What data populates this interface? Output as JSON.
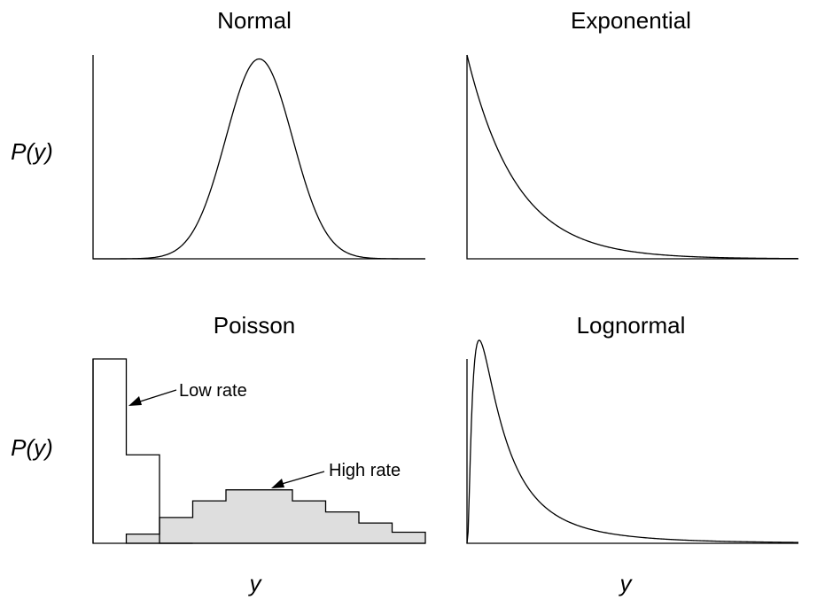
{
  "chart_data": [
    {
      "type": "line",
      "title": "Normal",
      "ylabel": "P(y)",
      "xlabel": "",
      "curve": "normal",
      "params": {
        "mean": 0.5,
        "sd": 0.1
      },
      "xlim": [
        0,
        1
      ],
      "ylim": [
        0,
        1.02
      ]
    },
    {
      "type": "line",
      "title": "Exponential",
      "ylabel": "",
      "xlabel": "",
      "curve": "exponential",
      "params": {
        "rate": 6.7
      },
      "xlim": [
        0,
        1
      ],
      "ylim": [
        0,
        1.0
      ]
    },
    {
      "type": "bar",
      "title": "Poisson",
      "ylabel": "P(y)",
      "xlabel": "y",
      "ylim": [
        0,
        1.0
      ],
      "series": [
        {
          "name": "Low rate",
          "values": [
            1.0,
            0.48,
            0.0
          ],
          "filled": false
        },
        {
          "name": "High rate",
          "values": [
            0.0,
            0.05,
            0.14,
            0.23,
            0.29,
            0.29,
            0.23,
            0.17,
            0.11,
            0.06
          ],
          "filled": true
        }
      ],
      "annotations": [
        {
          "text": "Low rate",
          "target": "Low rate"
        },
        {
          "text": "High rate",
          "target": "High rate"
        }
      ]
    },
    {
      "type": "line",
      "title": "Lognormal",
      "ylabel": "",
      "xlabel": "y",
      "curve": "lognormal",
      "params": {
        "mu": 0.0,
        "sigma": 1.0
      },
      "xlim": [
        0,
        10
      ],
      "ylim": [
        0,
        0.66
      ]
    }
  ]
}
